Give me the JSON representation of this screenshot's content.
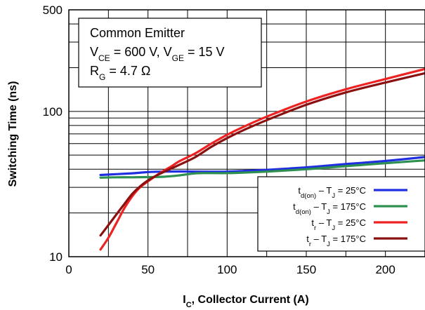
{
  "chart_data": {
    "type": "line",
    "title": "",
    "xlabel": {
      "main": "I",
      "sub": "C",
      "rest": ", Collector Current (A)"
    },
    "ylabel": "Switching Time (ns)",
    "x_range": [
      0,
      225
    ],
    "y_range": [
      10,
      500
    ],
    "y_scale": "log",
    "grid": true,
    "x_ticks": [
      0,
      50,
      100,
      150,
      200
    ],
    "x_tick_labels": [
      "0",
      "50",
      "100",
      "150",
      "200"
    ],
    "y_ticks": [
      10,
      100,
      500
    ],
    "y_tick_labels": [
      "10",
      "100",
      "500"
    ],
    "legend_position": "bottom-right",
    "annotation": {
      "line1": "Common Emitter",
      "line2": [
        {
          "t": "V"
        },
        {
          "t": "CE",
          "sub": true
        },
        {
          "t": " = 600 V, V"
        },
        {
          "t": "GE",
          "sub": true
        },
        {
          "t": " = 15 V"
        }
      ],
      "line3": [
        {
          "t": "R"
        },
        {
          "t": "G",
          "sub": true
        },
        {
          "t": " = 4.7 Ω"
        }
      ]
    },
    "series": [
      {
        "name": "td(on) – TJ = 25°C",
        "label_parts": [
          {
            "t": "t"
          },
          {
            "t": "d(on)",
            "sub": true
          },
          {
            "t": " – T"
          },
          {
            "t": "J",
            "sub": true
          },
          {
            "t": " = 25°C"
          }
        ],
        "color": "#1f2fe0",
        "x": [
          20,
          30,
          40,
          50,
          60,
          70,
          80,
          90,
          100,
          110,
          125,
          150,
          175,
          200,
          225
        ],
        "y": [
          36.5,
          37,
          37.5,
          38.2,
          38.5,
          38.6,
          38.5,
          38.4,
          38.5,
          38.9,
          39.6,
          41.2,
          43.4,
          45.6,
          48.5
        ]
      },
      {
        "name": "td(on) – TJ = 175°C",
        "label_parts": [
          {
            "t": "t"
          },
          {
            "t": "d(on)",
            "sub": true
          },
          {
            "t": " – T"
          },
          {
            "t": "J",
            "sub": true
          },
          {
            "t": " = 175°C"
          }
        ],
        "color": "#2e9050",
        "x": [
          20,
          30,
          40,
          50,
          60,
          70,
          80,
          90,
          100,
          110,
          125,
          150,
          175,
          200,
          225
        ],
        "y": [
          35,
          35.2,
          35.2,
          35.3,
          35.5,
          36.3,
          37.5,
          37.6,
          37.6,
          37.9,
          38.5,
          40,
          42,
          44,
          46
        ]
      },
      {
        "name": "tr – TJ = 25°C",
        "label_parts": [
          {
            "t": "t"
          },
          {
            "t": "r",
            "sub": true
          },
          {
            "t": " – T"
          },
          {
            "t": "J",
            "sub": true
          },
          {
            "t": " = 25°C"
          }
        ],
        "color": "#ee2222",
        "x": [
          20,
          25,
          30,
          35,
          40,
          45,
          50,
          55,
          60,
          65,
          70,
          80,
          90,
          100,
          110,
          125,
          150,
          175,
          200,
          225
        ],
        "y": [
          11.2,
          13.5,
          17,
          21.5,
          26,
          30,
          33,
          36,
          39,
          42,
          45.5,
          51.5,
          60,
          69,
          78,
          92,
          117,
          142,
          167,
          196
        ]
      },
      {
        "name": "tr – TJ = 175°C",
        "label_parts": [
          {
            "t": "t"
          },
          {
            "t": "r",
            "sub": true
          },
          {
            "t": " – T"
          },
          {
            "t": "J",
            "sub": true
          },
          {
            "t": " = 175°C"
          }
        ],
        "color": "#8b1010",
        "x": [
          20,
          25,
          30,
          35,
          40,
          45,
          50,
          55,
          60,
          70,
          80,
          90,
          100,
          110,
          125,
          150,
          175,
          200,
          225
        ],
        "y": [
          14,
          16.5,
          19.5,
          23,
          27,
          30.5,
          33.5,
          36,
          38.3,
          43,
          48.5,
          57,
          65.5,
          74,
          87,
          111,
          135,
          158,
          183
        ]
      }
    ]
  }
}
